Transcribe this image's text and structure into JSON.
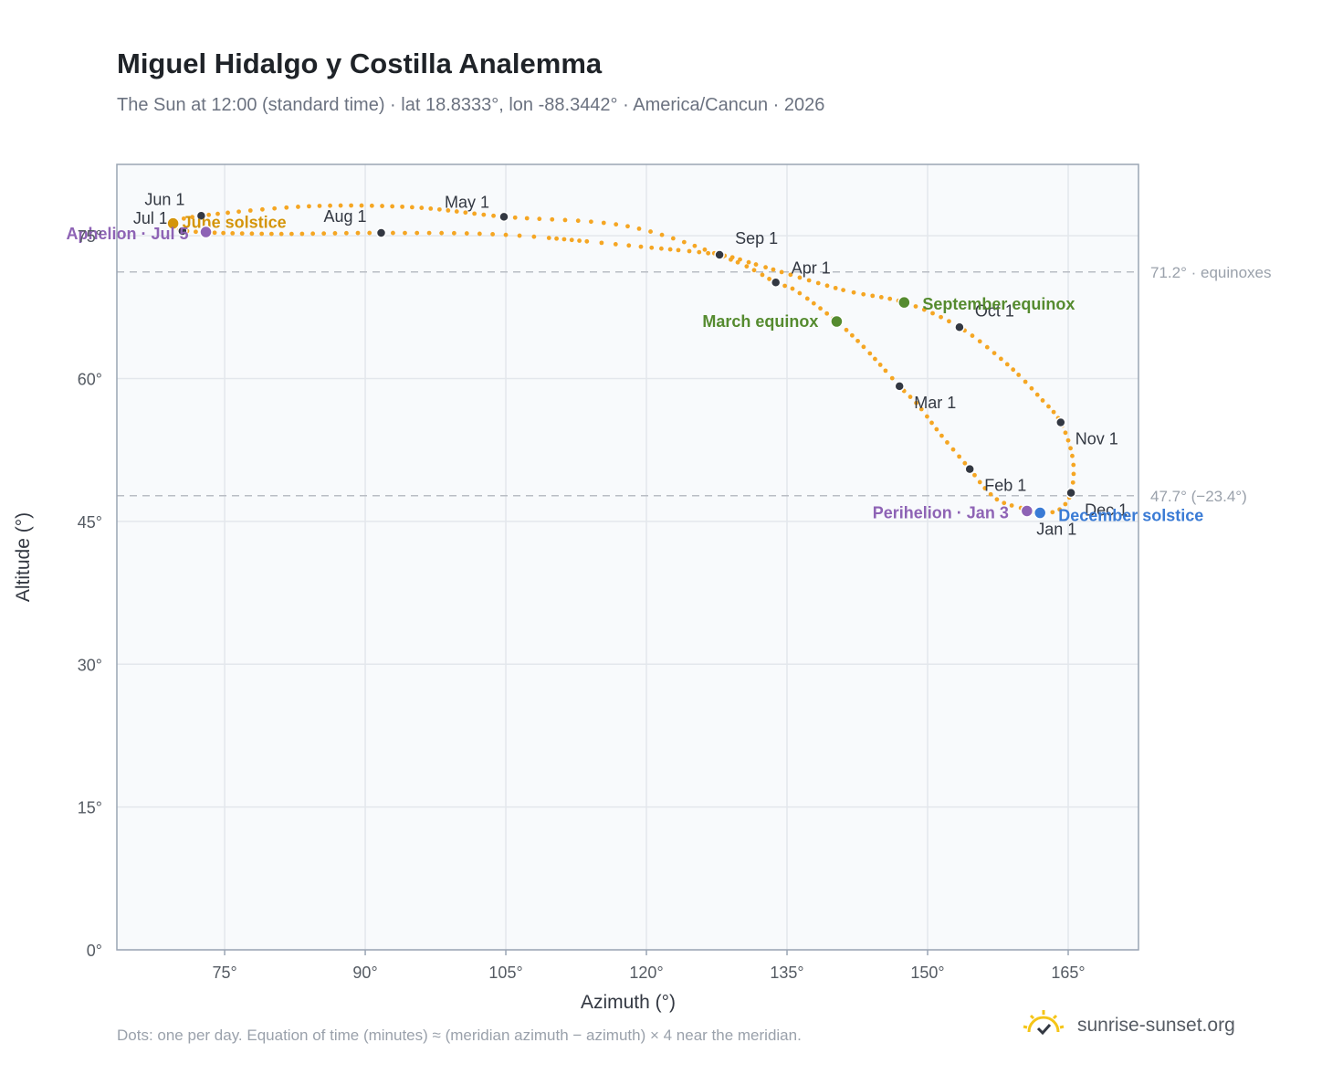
{
  "title": "Miguel Hidalgo y Costilla Analemma",
  "subtitle": "The Sun at 12:00 (standard time) · lat 18.8333°, lon -88.3442° · America/Cancun · 2026",
  "footnote": "Dots: one per day. Equation of time (minutes) ≈ (meridian azimuth − azimuth) × 4 near the meridian.",
  "brand": "sunrise-sunset.org",
  "colors": {
    "path": "#f5a623",
    "month": "#333842",
    "equinox": "#558b2f",
    "december": "#3a7bd5",
    "june": "#d4950a",
    "apsis": "#8e63b5",
    "ref": "#b9bdc4",
    "plotbg": "#f8fafc",
    "border": "#9aa5b4",
    "grid": "#e3e7ec"
  },
  "chart_data": {
    "type": "scatter",
    "xlabel": "Azimuth (°)",
    "ylabel": "Altitude (°)",
    "xlim": [
      63.5,
      172.5
    ],
    "ylim": [
      0,
      82.5
    ],
    "xticks": [
      75,
      90,
      105,
      120,
      135,
      150,
      165
    ],
    "yticks": [
      0,
      15,
      30,
      45,
      60,
      75
    ],
    "xtick_labels": [
      "75°",
      "90°",
      "105°",
      "120°",
      "135°",
      "150°",
      "165°"
    ],
    "ytick_labels": [
      "0°",
      "15°",
      "30°",
      "45°",
      "60°",
      "75°"
    ],
    "ref_lines": [
      {
        "y": 71.2,
        "label": "71.2° · equinoxes"
      },
      {
        "y": 47.7,
        "label": "47.7° (−23.4°)"
      }
    ],
    "path_anchors": [
      [
        160.6,
        46.1
      ],
      [
        162.0,
        45.9
      ],
      [
        158.0,
        47.0
      ],
      [
        156.2,
        48.4
      ],
      [
        154.5,
        50.5
      ],
      [
        151.5,
        54.0
      ],
      [
        149.0,
        57.2
      ],
      [
        147.0,
        59.2
      ],
      [
        143.5,
        63.0
      ],
      [
        140.3,
        66.0
      ],
      [
        136.0,
        69.2
      ],
      [
        133.8,
        70.1
      ],
      [
        129.0,
        72.5
      ],
      [
        118.0,
        76.0
      ],
      [
        104.8,
        77.0
      ],
      [
        95.0,
        78.0
      ],
      [
        84.0,
        78.1
      ],
      [
        72.5,
        77.1
      ],
      [
        69.5,
        76.3
      ],
      [
        71.0,
        75.5
      ],
      [
        80.0,
        75.2
      ],
      [
        91.7,
        75.3
      ],
      [
        105.0,
        75.1
      ],
      [
        120.0,
        73.8
      ],
      [
        127.8,
        73.0
      ],
      [
        132.0,
        71.9
      ],
      [
        141.0,
        69.3
      ],
      [
        147.5,
        68.0
      ],
      [
        153.4,
        65.4
      ],
      [
        158.5,
        61.5
      ],
      [
        162.0,
        58.0
      ],
      [
        164.2,
        55.4
      ],
      [
        165.5,
        51.5
      ],
      [
        165.3,
        48.0
      ],
      [
        164.0,
        46.2
      ],
      [
        162.0,
        45.9
      ]
    ],
    "month_points": [
      {
        "label": "Jan 1",
        "az": 162.0,
        "alt": 45.9
      },
      {
        "label": "Feb 1",
        "az": 154.5,
        "alt": 50.5
      },
      {
        "label": "Mar 1",
        "az": 147.0,
        "alt": 59.2
      },
      {
        "label": "Apr 1",
        "az": 133.8,
        "alt": 70.1
      },
      {
        "label": "May 1",
        "az": 104.8,
        "alt": 77.0
      },
      {
        "label": "Jun 1",
        "az": 72.5,
        "alt": 77.1
      },
      {
        "label": "Jul 1",
        "az": 70.5,
        "alt": 75.5
      },
      {
        "label": "Aug 1",
        "az": 91.7,
        "alt": 75.3
      },
      {
        "label": "Sep 1",
        "az": 127.8,
        "alt": 73.0
      },
      {
        "label": "Oct 1",
        "az": 153.4,
        "alt": 65.4
      },
      {
        "label": "Nov 1",
        "az": 164.2,
        "alt": 55.4
      },
      {
        "label": "Dec 1",
        "az": 165.3,
        "alt": 48.0
      }
    ],
    "events": [
      {
        "label": "March equinox",
        "az": 140.3,
        "alt": 66.0,
        "kind": "equinox"
      },
      {
        "label": "September equinox",
        "az": 147.5,
        "alt": 68.0,
        "kind": "equinox"
      },
      {
        "label": "June solstice",
        "az": 69.5,
        "alt": 76.3,
        "kind": "june"
      },
      {
        "label": "December solstice",
        "az": 162.0,
        "alt": 45.9,
        "kind": "december"
      },
      {
        "label": "Aphelion · Jul 5",
        "az": 73.0,
        "alt": 75.4,
        "kind": "apsis"
      },
      {
        "label": "Perihelion · Jan 3",
        "az": 160.6,
        "alt": 46.1,
        "kind": "apsis"
      }
    ]
  }
}
